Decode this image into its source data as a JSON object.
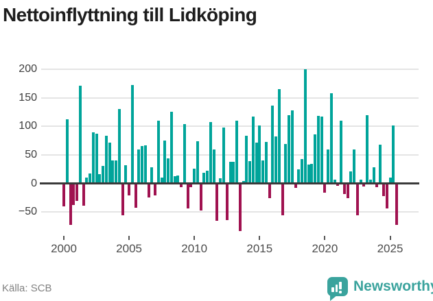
{
  "title": "Nettoinflyttning till Lidköping",
  "source_label": "Källa: SCB",
  "branding": {
    "wordmark": "Newsworthy",
    "icon": "bar-chart-speech-bubble-icon"
  },
  "colors": {
    "positive": "#00a49a",
    "negative": "#a01250",
    "grid": "#e4e4e4",
    "axis": "#3a3a3a",
    "brand": "#3aa39d"
  },
  "chart_data": {
    "type": "bar",
    "title": "Nettoinflyttning till Lidköping",
    "frequency": "quarterly",
    "start": "2000 Q1",
    "end": "2025 Q3",
    "grid": true,
    "legend": false,
    "y_ticks": [
      {
        "label": "200",
        "v": 200
      },
      {
        "label": "150",
        "v": 150
      },
      {
        "label": "100",
        "v": 100
      },
      {
        "label": "50",
        "v": 50
      },
      {
        "label": "0",
        "v": 0
      },
      {
        "label": "−50",
        "v": -50
      }
    ],
    "ylim": [
      -95,
      217
    ],
    "x_ticks": [
      {
        "label": "2000",
        "index": 0
      },
      {
        "label": "2005",
        "index": 20
      },
      {
        "label": "2010",
        "index": 40
      },
      {
        "label": "2015",
        "index": 60
      },
      {
        "label": "2020",
        "index": 80
      },
      {
        "label": "2025",
        "index": 100
      }
    ],
    "values": [
      -40,
      112,
      -72,
      -37,
      -30,
      171,
      -39,
      11,
      18,
      89,
      87,
      17,
      31,
      84,
      72,
      40,
      40,
      130,
      -55,
      32,
      -21,
      172,
      -42,
      60,
      66,
      67,
      -24,
      28,
      -21,
      110,
      11,
      75,
      44,
      126,
      13,
      14,
      -6,
      104,
      -43,
      -6,
      26,
      74,
      -47,
      19,
      22,
      108,
      60,
      -65,
      9,
      98,
      -64,
      38,
      38,
      110,
      -83,
      4,
      83,
      39,
      117,
      71,
      101,
      40,
      73,
      -26,
      136,
      82,
      165,
      -56,
      69,
      119,
      128,
      -8,
      25,
      43,
      200,
      33,
      34,
      86,
      118,
      117,
      -16,
      60,
      158,
      7,
      -4,
      110,
      -18,
      -25,
      21,
      60,
      -55,
      7,
      -5,
      120,
      7,
      28,
      -6,
      68,
      -22,
      -43,
      10,
      102,
      -72
    ]
  }
}
